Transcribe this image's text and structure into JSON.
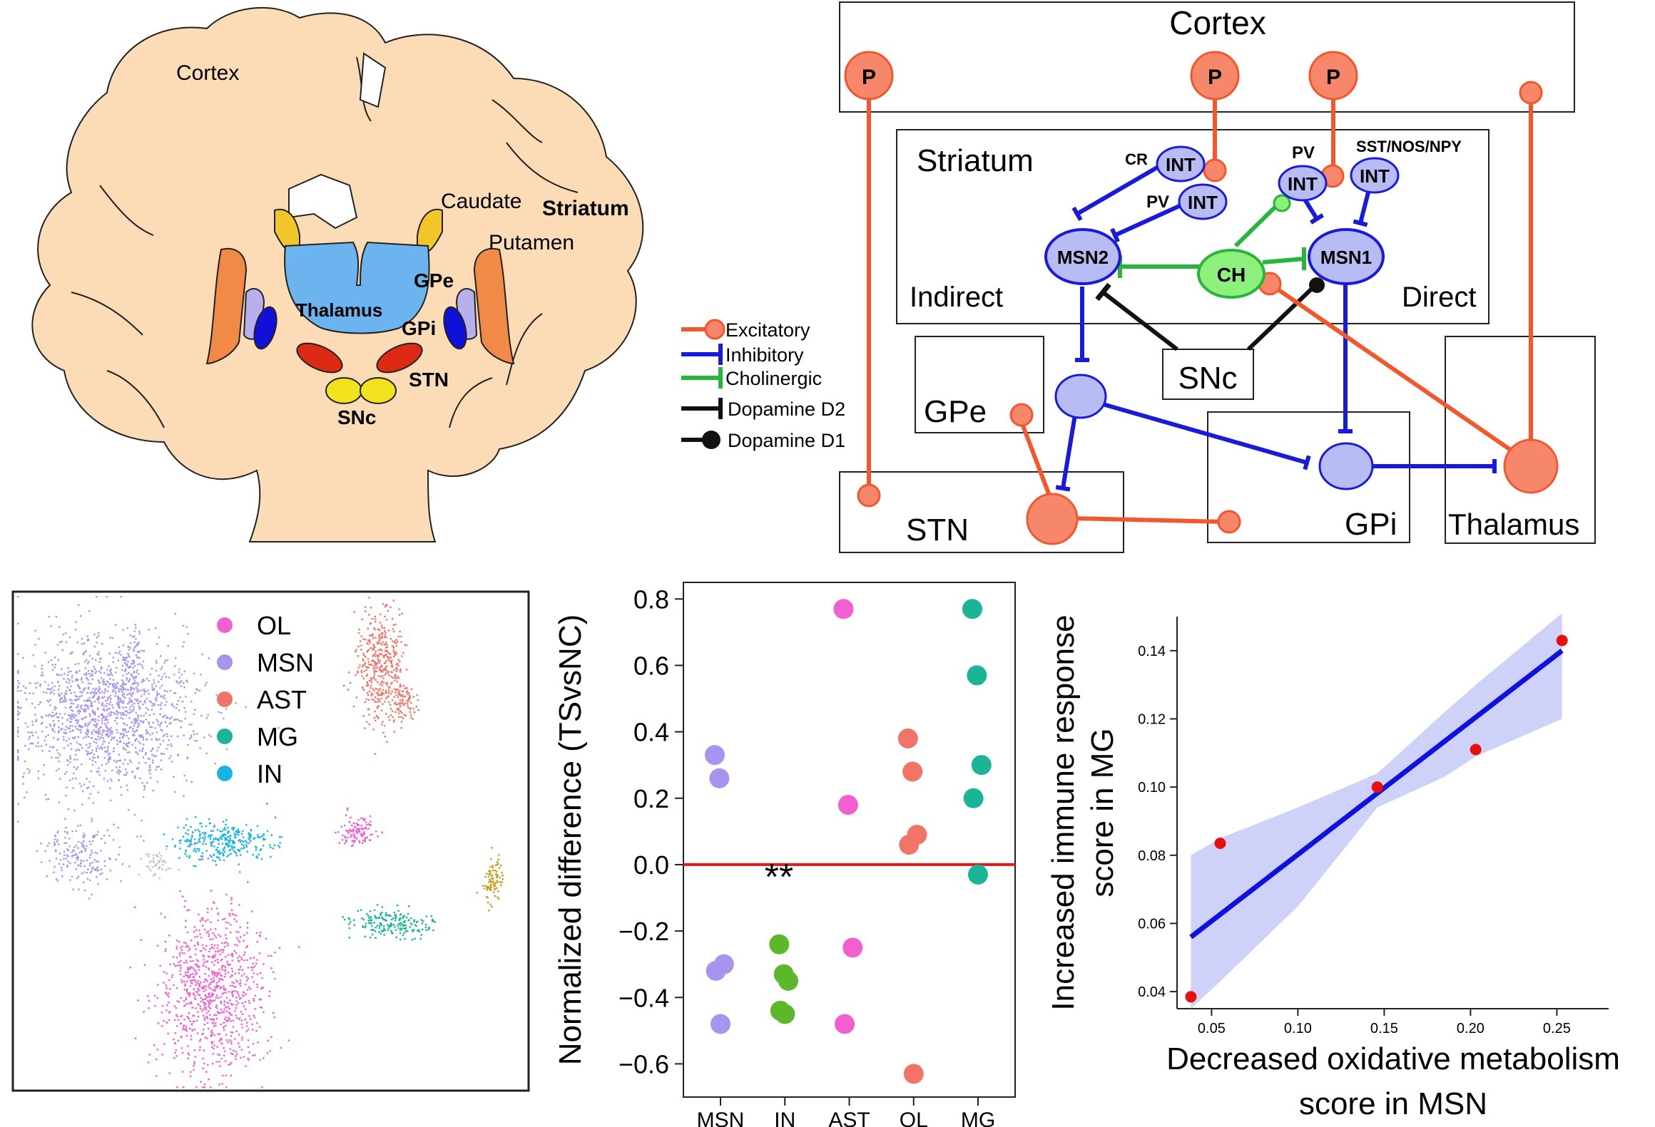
{
  "colors": {
    "tissue": "#fcdcb6",
    "excitatory": "#f2582c",
    "excitatory_fill": "#f7876a",
    "inhibitory": "#1a1adb",
    "inhibitory_fill": "#b8bcf5",
    "cholinergic": "#27b53a",
    "cholinergic_fill": "#8ef07c",
    "dopamine": "#111111",
    "zero_line": "#e01b1b",
    "regression": "#1010e0",
    "ci_band": "#c9ccf7",
    "points_red": "#e80f0f"
  },
  "brain": {
    "cortex": "Cortex",
    "caudate": "Caudate",
    "striatum": "Striatum",
    "putamen": "Putamen",
    "gpe": "GPe",
    "thalamus": "Thalamus",
    "gpi": "GPi",
    "stn": "STN",
    "snc": "SNc"
  },
  "legend": {
    "excitatory": "Excitatory",
    "inhibitory": "Inhibitory",
    "cholinergic": "Cholinergic",
    "d2": "Dopamine D2",
    "d1": "Dopamine D1"
  },
  "circuit": {
    "cortex": "Cortex",
    "striatum": "Striatum",
    "indirect": "Indirect",
    "direct": "Direct",
    "snc": "SNc",
    "gpe": "GPe",
    "stn": "STN",
    "gpi": "GPi",
    "thalamus": "Thalamus",
    "p": "P",
    "int": "INT",
    "cr": "CR",
    "pv": "PV",
    "sst": "SST/NOS/NPY",
    "msn1": "MSN1",
    "msn2": "MSN2",
    "ch": "CH"
  },
  "umap": {
    "legend": [
      {
        "label": "OL",
        "color": "#f25fcf"
      },
      {
        "label": "MSN",
        "color": "#a894ef"
      },
      {
        "label": "AST",
        "color": "#f07468"
      },
      {
        "label": "MG",
        "color": "#1ab497"
      },
      {
        "label": "IN",
        "color": "#18b3e3"
      }
    ],
    "other_colors": {
      "gray": "#c2c2c2",
      "gold": "#c49a18"
    }
  },
  "chart_data": [
    {
      "type": "scatter",
      "title": "",
      "xlabel": "",
      "ylabel": "Normalized difference (TSvsNC)",
      "categories": [
        "MSN",
        "IN",
        "AST",
        "OL",
        "MG"
      ],
      "ylim": [
        -0.7,
        0.85
      ],
      "yticks": [
        "0.8",
        "0.6",
        "0.4",
        "0.2",
        "0.0",
        "−0.2",
        "−0.4",
        "−0.6"
      ],
      "ytick_values": [
        0.8,
        0.6,
        0.4,
        0.2,
        0.0,
        -0.2,
        -0.4,
        -0.6
      ],
      "zero_line": 0.0,
      "annotation": "**",
      "series": [
        {
          "category": "MSN",
          "color": "#a894ef",
          "values": [
            0.33,
            0.26,
            -0.3,
            -0.32,
            -0.48
          ]
        },
        {
          "category": "IN",
          "color": "#5cb82a",
          "values": [
            -0.24,
            -0.33,
            -0.35,
            -0.44,
            -0.45
          ]
        },
        {
          "category": "AST",
          "color": "#f25fcf",
          "values": [
            0.77,
            0.18,
            -0.25,
            -0.48
          ]
        },
        {
          "category": "OL",
          "color": "#f07468",
          "values": [
            0.38,
            0.28,
            0.09,
            0.06,
            -0.63
          ]
        },
        {
          "category": "MG",
          "color": "#1ab497",
          "values": [
            0.77,
            0.57,
            0.3,
            0.2,
            -0.03
          ]
        }
      ]
    },
    {
      "type": "scatter",
      "title": "",
      "xlabel": "Decreased oxidative metabolism score in MSN",
      "xlabel_lines": [
        "Decreased oxidative metabolism",
        "score in MSN"
      ],
      "ylabel": "Increased immune response score in MG",
      "ylabel_lines": [
        "Increased immune response",
        "score in MG"
      ],
      "xlim": [
        0.03,
        0.28
      ],
      "ylim": [
        0.035,
        0.15
      ],
      "xticks": [
        "0.05",
        "0.10",
        "0.15",
        "0.20",
        "0.25"
      ],
      "xtick_values": [
        0.05,
        0.1,
        0.15,
        0.2,
        0.25
      ],
      "yticks": [
        "0.14",
        "0.12",
        "0.10",
        "0.08",
        "0.06",
        "0.04"
      ],
      "ytick_values": [
        0.14,
        0.12,
        0.1,
        0.08,
        0.06,
        0.04
      ],
      "points": [
        {
          "x": 0.038,
          "y": 0.0385
        },
        {
          "x": 0.055,
          "y": 0.0835
        },
        {
          "x": 0.146,
          "y": 0.1
        },
        {
          "x": 0.203,
          "y": 0.111
        },
        {
          "x": 0.253,
          "y": 0.143
        }
      ],
      "regression": {
        "x": [
          0.038,
          0.253
        ],
        "y": [
          0.056,
          0.14
        ]
      },
      "ci_band": {
        "x": [
          0.038,
          0.055,
          0.1,
          0.146,
          0.185,
          0.203,
          0.253
        ],
        "upper": [
          0.08,
          0.085,
          0.094,
          0.104,
          0.122,
          0.13,
          0.151
        ],
        "lower": [
          0.035,
          0.043,
          0.065,
          0.094,
          0.103,
          0.109,
          0.12
        ]
      }
    }
  ]
}
